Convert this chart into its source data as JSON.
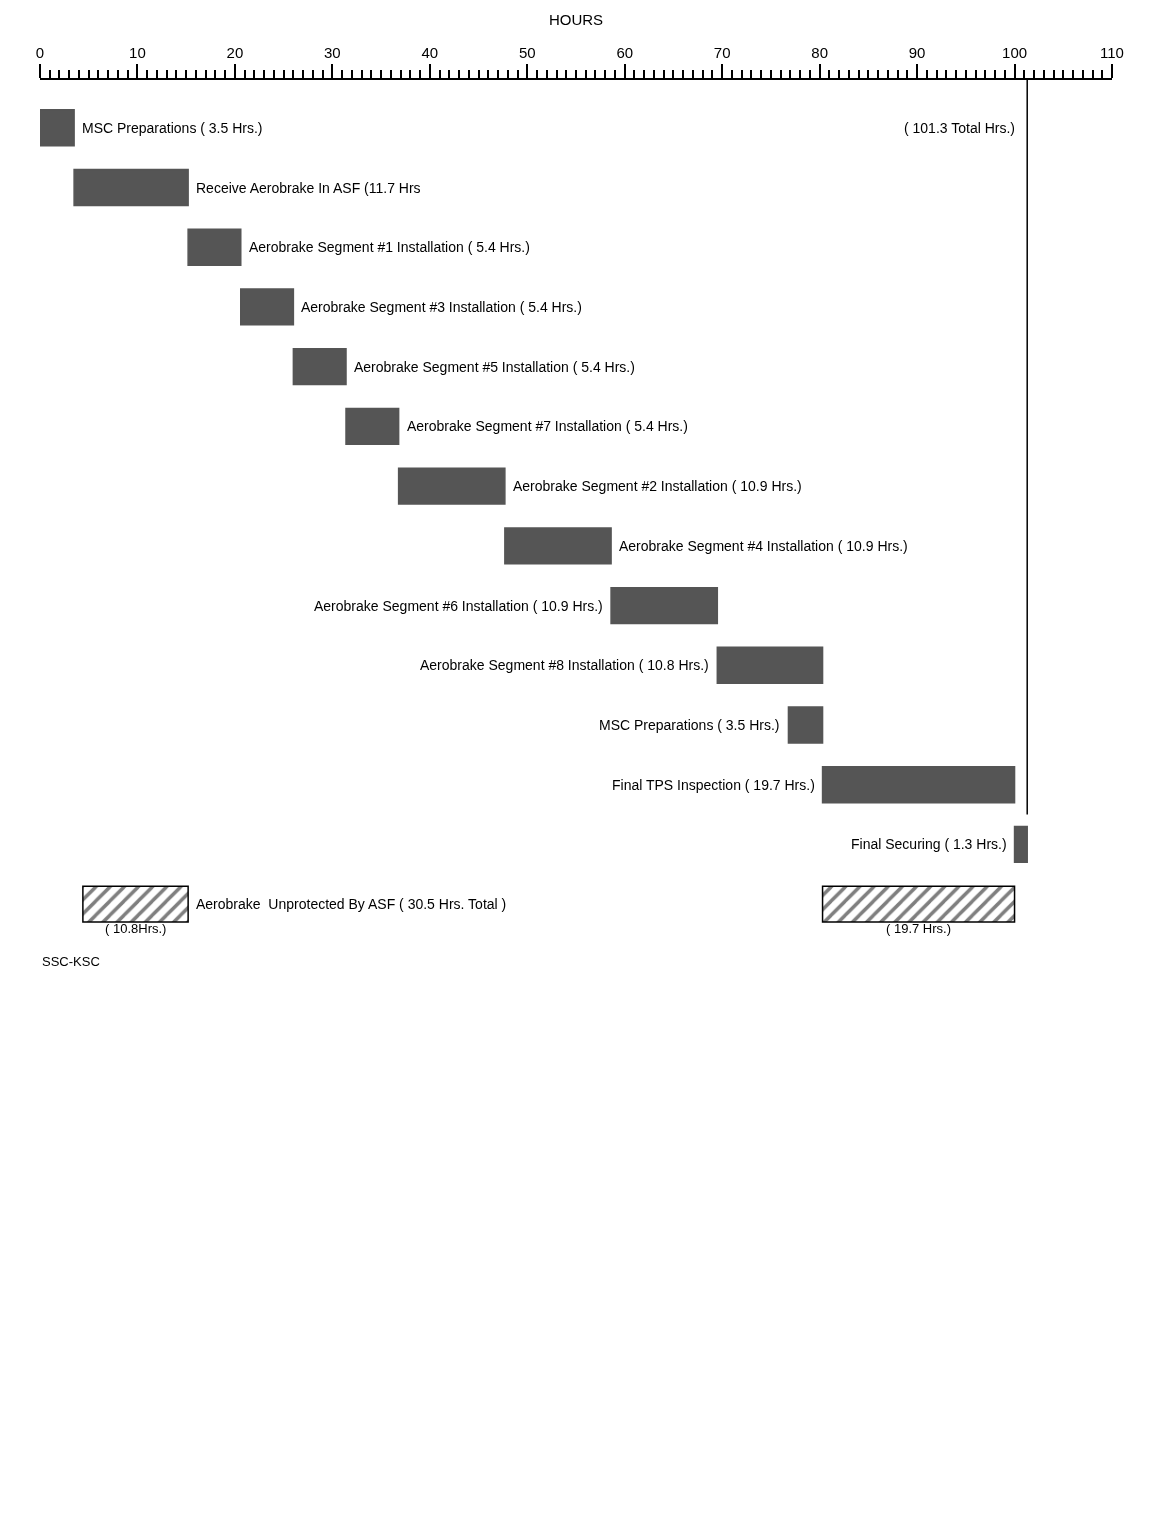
{
  "chart_data": {
    "type": "bar",
    "orientation": "horizontal",
    "xlabel": "HOURS",
    "categories": [
      "MSC Preparations ( 3.5 Hrs.)",
      "Receive Aerobrake In ASF (11.7 Hrs",
      "Aerobrake Segment #1 Installation ( 5.4 Hrs.)",
      "Aerobrake Segment #3 Installation ( 5.4 Hrs.)",
      "Aerobrake Segment #5 Installation ( 5.4 Hrs.)",
      "Aerobrake Segment #7 Installation ( 5.4 Hrs.)",
      "Aerobrake Segment #2 Installation ( 10.9 Hrs.)",
      "Aerobrake Segment #4 Installation ( 10.9 Hrs.)",
      "Aerobrake Segment #6 Installation ( 10.9 Hrs.)",
      "Aerobrake Segment #8 Installation ( 10.8 Hrs.)",
      "MSC Preparations ( 3.5 Hrs.)",
      "Final TPS Inspection ( 19.7 Hrs.)",
      "Final Securing ( 1.3 Hrs.)",
      "Aerobrake  Unprotected By ASF ( 30.5 Hrs. Total )"
    ],
    "series": [
      {
        "color": "#555555",
        "values": [
          3.5,
          11.7,
          5.4,
          5.4,
          5.4,
          5.4,
          10.9,
          10.9,
          10.9,
          10.8,
          3.5,
          19.7,
          1.3,
          null
        ],
        "base": [
          0,
          3.5,
          15.2,
          20.6,
          26.0,
          31.4,
          36.8,
          47.7,
          58.6,
          69.5,
          76.8,
          80.3,
          100.0,
          null
        ]
      },
      {
        "color": "#000000",
        "values": [
          null,
          null,
          null,
          null,
          null,
          null,
          null,
          null,
          null,
          null,
          null,
          null,
          null,
          10.8
        ],
        "base": [
          null,
          null,
          null,
          null,
          null,
          null,
          null,
          null,
          null,
          null,
          null,
          null,
          null,
          4.4
        ],
        "value_labels": [
          null,
          null,
          null,
          null,
          null,
          null,
          null,
          null,
          null,
          null,
          null,
          null,
          null,
          "( 10.8Hrs.)"
        ]
      },
      {
        "color": "#000000",
        "values": [
          null,
          null,
          null,
          null,
          null,
          null,
          null,
          null,
          null,
          null,
          null,
          null,
          null,
          19.7
        ],
        "base": [
          null,
          null,
          null,
          null,
          null,
          null,
          null,
          null,
          null,
          null,
          null,
          null,
          null,
          80.3
        ],
        "value_labels": [
          null,
          null,
          null,
          null,
          null,
          null,
          null,
          null,
          null,
          null,
          null,
          null,
          null,
          "( 19.7 Hrs.)"
        ]
      }
    ],
    "xlim": [
      0,
      110
    ],
    "xticks": [
      0,
      10,
      20,
      30,
      40,
      50,
      60,
      70,
      80,
      90,
      100,
      110
    ],
    "grid": false,
    "ref_lines": [
      {
        "axis": "x",
        "value": 101.3,
        "label": "( 101.3 Total Hrs.)",
        "color": "#000000"
      }
    ],
    "annotations": [
      "SSC-KSC"
    ]
  }
}
